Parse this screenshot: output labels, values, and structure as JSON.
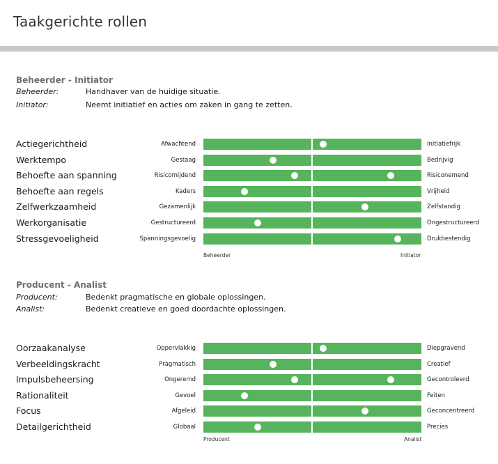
{
  "page": {
    "title": "Taakgerichte rollen"
  },
  "colors": {
    "bar": "#55b45c",
    "header_bar": "#c4cbc8",
    "section_title": "#6f6f6f"
  },
  "sections": [
    {
      "title": "Beheerder - Initiator",
      "definitions": [
        {
          "term": "Beheerder:",
          "text": "Handhaver van de huidige situatie."
        },
        {
          "term": "Initiator:",
          "text": "Neemt initiatief en acties om zaken in gang te zetten."
        }
      ],
      "axis_left": "Beheerder",
      "axis_right": "Initiator"
    },
    {
      "title": "Producent - Analist",
      "definitions": [
        {
          "term": "Producent:",
          "text": "Bedenkt pragmatische en globale oplossingen."
        },
        {
          "term": "Analist:",
          "text": "Bedenkt creatieve en goed doordachte oplossingen."
        }
      ],
      "axis_left": "Producent",
      "axis_right": "Analist"
    }
  ],
  "chart_data": [
    {
      "type": "bar",
      "scale_range": [
        0,
        1
      ],
      "rows": [
        {
          "trait": "Actiegerichtheid",
          "left": "Afwachtend",
          "right": "Initiatiefrijk",
          "values": [
            0.55
          ]
        },
        {
          "trait": "Werktempo",
          "left": "Gestaag",
          "right": "Bedrijvig",
          "values": [
            0.32
          ]
        },
        {
          "trait": "Behoefte aan spanning",
          "left": "Risicomijdend",
          "right": "Risiconemend",
          "values": [
            0.42,
            0.86
          ]
        },
        {
          "trait": "Behoefte aan regels",
          "left": "Kaders",
          "right": "Vrijheid",
          "values": [
            0.19
          ]
        },
        {
          "trait": "Zelfwerkzaamheid",
          "left": "Gezamenlijk",
          "right": "Zelfstandig",
          "values": [
            0.74
          ]
        },
        {
          "trait": "Werkorganisatie",
          "left": "Gestructureerd",
          "right": "Ongestructureerd",
          "values": [
            0.25
          ]
        },
        {
          "trait": "Stressgevoeligheid",
          "left": "Spanningsgevoelig",
          "right": "Drukbestendig",
          "values": [
            0.89
          ]
        }
      ]
    },
    {
      "type": "bar",
      "scale_range": [
        0,
        1
      ],
      "rows": [
        {
          "trait": "Oorzaakanalyse",
          "left": "Oppervlakkig",
          "right": "Diepgravend",
          "values": [
            0.55
          ]
        },
        {
          "trait": "Verbeeldingskracht",
          "left": "Pragmatisch",
          "right": "Creatief",
          "values": [
            0.32
          ]
        },
        {
          "trait": "Impulsbeheersing",
          "left": "Ongeremd",
          "right": "Gecontroleerd",
          "values": [
            0.42,
            0.86
          ]
        },
        {
          "trait": "Rationaliteit",
          "left": "Gevoel",
          "right": "Feiten",
          "values": [
            0.19
          ]
        },
        {
          "trait": "Focus",
          "left": "Afgeleid",
          "right": "Geconcentreerd",
          "values": [
            0.74
          ]
        },
        {
          "trait": "Detailgerichtheid",
          "left": "Globaal",
          "right": "Precies",
          "values": [
            0.25
          ]
        }
      ]
    }
  ]
}
